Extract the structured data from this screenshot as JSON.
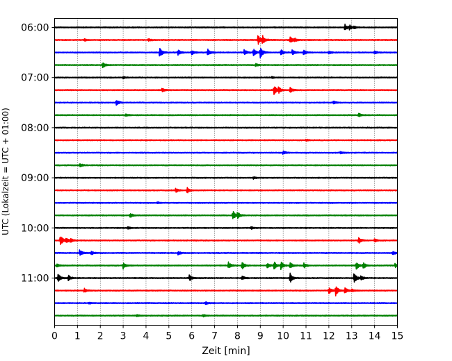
{
  "chart_data": {
    "type": "line",
    "title": "",
    "xlabel": "Zeit  [min]",
    "ylabel": "UTC (Lokalzeit = UTC + 01:00)",
    "xlim": [
      0,
      15
    ],
    "x_ticks": [
      "0",
      "1",
      "2",
      "3",
      "4",
      "5",
      "6",
      "7",
      "8",
      "9",
      "10",
      "11",
      "12",
      "13",
      "14",
      "15"
    ],
    "y_tick_labels": [
      "06:00",
      "07:00",
      "08:00",
      "09:00",
      "10:00",
      "11:00"
    ],
    "grid": "vertical dotted",
    "trace_interval_minutes": 15,
    "color_cycle": [
      "#000000",
      "#ff0000",
      "#0000ff",
      "#008000"
    ],
    "traces": [
      {
        "start": "06:00",
        "events": [
          [
            12.7,
            0.55
          ],
          [
            12.9,
            0.35
          ],
          [
            13.1,
            0.2
          ]
        ]
      },
      {
        "start": "06:15",
        "events": [
          [
            1.3,
            0.2
          ],
          [
            4.1,
            0.2
          ],
          [
            8.9,
            1.0
          ],
          [
            9.1,
            0.7
          ],
          [
            10.3,
            0.6
          ],
          [
            10.5,
            0.25
          ]
        ]
      },
      {
        "start": "06:30",
        "events": [
          [
            4.6,
            0.9
          ],
          [
            5.4,
            0.5
          ],
          [
            6.0,
            0.4
          ],
          [
            6.7,
            0.6
          ],
          [
            8.3,
            0.5
          ],
          [
            8.7,
            0.65
          ],
          [
            9.0,
            0.9
          ],
          [
            9.9,
            0.5
          ],
          [
            10.4,
            0.45
          ],
          [
            10.9,
            0.5
          ],
          [
            12.0,
            0.25
          ],
          [
            14.0,
            0.3
          ]
        ]
      },
      {
        "start": "06:45",
        "events": [
          [
            2.1,
            0.5
          ],
          [
            8.8,
            0.25
          ]
        ]
      },
      {
        "start": "07:00",
        "events": [
          [
            3.0,
            0.15
          ],
          [
            9.5,
            0.15
          ]
        ]
      },
      {
        "start": "07:15",
        "events": [
          [
            4.7,
            0.3
          ],
          [
            9.6,
            0.9
          ],
          [
            9.8,
            0.45
          ],
          [
            10.3,
            0.45
          ]
        ]
      },
      {
        "start": "07:30",
        "events": [
          [
            2.7,
            0.5
          ],
          [
            12.2,
            0.3
          ]
        ]
      },
      {
        "start": "07:45",
        "events": [
          [
            3.1,
            0.2
          ],
          [
            13.3,
            0.35
          ]
        ]
      },
      {
        "start": "08:00",
        "events": []
      },
      {
        "start": "08:15",
        "events": [
          [
            11.0,
            0.15
          ]
        ]
      },
      {
        "start": "08:30",
        "events": [
          [
            10.0,
            0.3
          ],
          [
            12.5,
            0.2
          ]
        ]
      },
      {
        "start": "08:45",
        "events": [
          [
            1.1,
            0.35
          ]
        ]
      },
      {
        "start": "09:00",
        "events": [
          [
            8.7,
            0.2
          ]
        ]
      },
      {
        "start": "09:15",
        "events": [
          [
            5.3,
            0.35
          ],
          [
            5.8,
            0.5
          ]
        ]
      },
      {
        "start": "09:30",
        "events": [
          [
            4.5,
            0.15
          ]
        ]
      },
      {
        "start": "09:45",
        "events": [
          [
            3.3,
            0.4
          ],
          [
            7.8,
            0.75
          ],
          [
            8.0,
            0.6
          ]
        ]
      },
      {
        "start": "10:00",
        "events": [
          [
            3.2,
            0.2
          ],
          [
            8.6,
            0.2
          ]
        ]
      },
      {
        "start": "10:15",
        "events": [
          [
            0.25,
            1.0
          ],
          [
            0.5,
            0.4
          ],
          [
            0.7,
            0.35
          ],
          [
            13.3,
            0.55
          ],
          [
            14.0,
            0.3
          ]
        ]
      },
      {
        "start": "10:30",
        "events": [
          [
            1.1,
            0.6
          ],
          [
            1.6,
            0.3
          ],
          [
            5.4,
            0.3
          ],
          [
            14.8,
            0.3
          ]
        ]
      },
      {
        "start": "10:45",
        "events": [
          [
            0.1,
            0.3
          ],
          [
            3.0,
            0.55
          ],
          [
            7.6,
            0.6
          ],
          [
            8.2,
            0.7
          ],
          [
            9.3,
            0.5
          ],
          [
            9.6,
            0.7
          ],
          [
            9.9,
            0.7
          ],
          [
            10.3,
            0.55
          ],
          [
            10.9,
            0.45
          ],
          [
            13.2,
            0.7
          ],
          [
            13.5,
            0.55
          ],
          [
            14.9,
            0.35
          ]
        ]
      },
      {
        "start": "11:00",
        "events": [
          [
            0.15,
            0.85
          ],
          [
            0.6,
            0.5
          ],
          [
            5.9,
            0.55
          ],
          [
            8.2,
            0.35
          ],
          [
            10.3,
            0.85
          ],
          [
            13.1,
            1.0
          ],
          [
            13.4,
            0.35
          ]
        ]
      },
      {
        "start": "11:15",
        "events": [
          [
            1.3,
            0.35
          ],
          [
            12.0,
            0.65
          ],
          [
            12.3,
            0.85
          ],
          [
            12.7,
            0.5
          ],
          [
            13.0,
            0.25
          ]
        ]
      },
      {
        "start": "11:30",
        "events": [
          [
            1.5,
            0.15
          ],
          [
            6.6,
            0.2
          ]
        ]
      },
      {
        "start": "11:45",
        "events": [
          [
            3.6,
            0.2
          ],
          [
            6.5,
            0.2
          ]
        ]
      }
    ]
  }
}
